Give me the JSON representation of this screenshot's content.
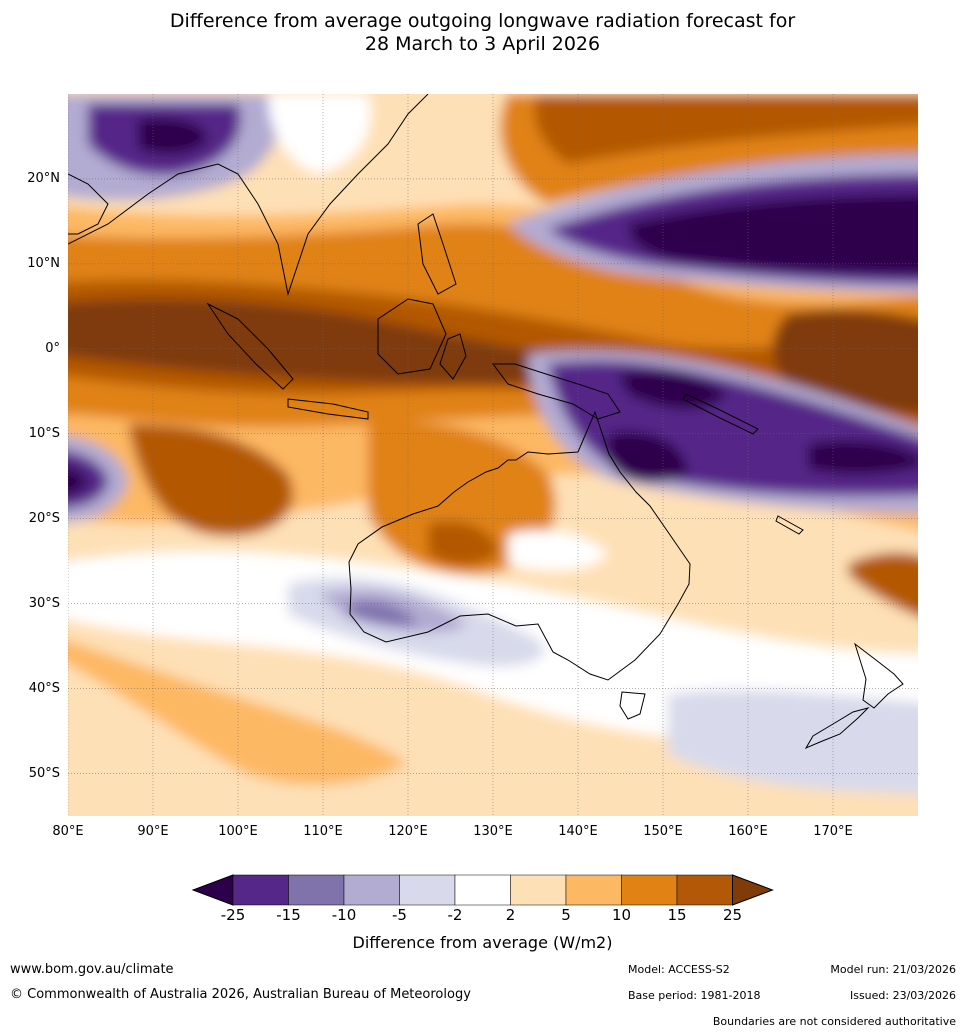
{
  "title": {
    "line1": "Difference from average outgoing longwave radiation forecast for",
    "line2": "28 March to 3 April 2026"
  },
  "map": {
    "projection": "equirectangular",
    "lon_range": [
      80,
      180
    ],
    "lat_range": [
      -55,
      30
    ],
    "lat_labels": [
      "20°N",
      "10°N",
      "0°",
      "10°S",
      "20°S",
      "30°S",
      "40°S",
      "50°S"
    ],
    "lat_values": [
      20,
      10,
      0,
      -10,
      -20,
      -30,
      -40,
      -50
    ],
    "lon_labels": [
      "80°E",
      "90°E",
      "100°E",
      "110°E",
      "120°E",
      "130°E",
      "140°E",
      "150°E",
      "160°E",
      "170°E"
    ],
    "lon_values": [
      80,
      90,
      100,
      110,
      120,
      130,
      140,
      150,
      160,
      170
    ],
    "anomaly_regions": [
      {
        "name": "south-china-sea-maritime-positive",
        "level": "10 to 15",
        "color": "#e08214"
      },
      {
        "name": "equatorial-indian-ocean-strong-positive",
        "level": "above 25",
        "color": "#7f3b08"
      },
      {
        "name": "north-pacific-strong-negative",
        "level": "below -25",
        "color": "#2d004b"
      },
      {
        "name": "coral-sea-negative",
        "level": "-25 to -15",
        "color": "#542788"
      },
      {
        "name": "myanmar-negative",
        "level": "-25 to -15",
        "color": "#542788"
      },
      {
        "name": "western-australia-positive",
        "level": "15 to 25",
        "color": "#b35806"
      },
      {
        "name": "southern-ocean-negative",
        "level": "-10 to -5",
        "color": "#b2abd2"
      },
      {
        "name": "tasman-sea-negative",
        "level": "-5 to -2",
        "color": "#d8daeb"
      }
    ]
  },
  "colorbar": {
    "labels": [
      "-25",
      "-15",
      "-10",
      "-5",
      "-2",
      "2",
      "5",
      "10",
      "15",
      "25"
    ],
    "colors": [
      "#542788",
      "#8073ac",
      "#b2abd2",
      "#d8daeb",
      "#ffffff",
      "#fee0b6",
      "#fdb863",
      "#e08214",
      "#b35806"
    ],
    "extend_low_color": "#2d004b",
    "extend_high_color": "#7f3b08",
    "title": "Difference from average (W/m2)"
  },
  "footer": {
    "website": "www.bom.gov.au/climate",
    "copyright": "© Commonwealth of Australia 2026, Australian Bureau of Meteorology",
    "model": "Model: ACCESS-S2",
    "base_period": "Base period: 1981-2018",
    "model_run": "Model run: 21/03/2026",
    "issued": "Issued: 23/03/2026",
    "disclaimer": "Boundaries are not considered authoritative"
  }
}
